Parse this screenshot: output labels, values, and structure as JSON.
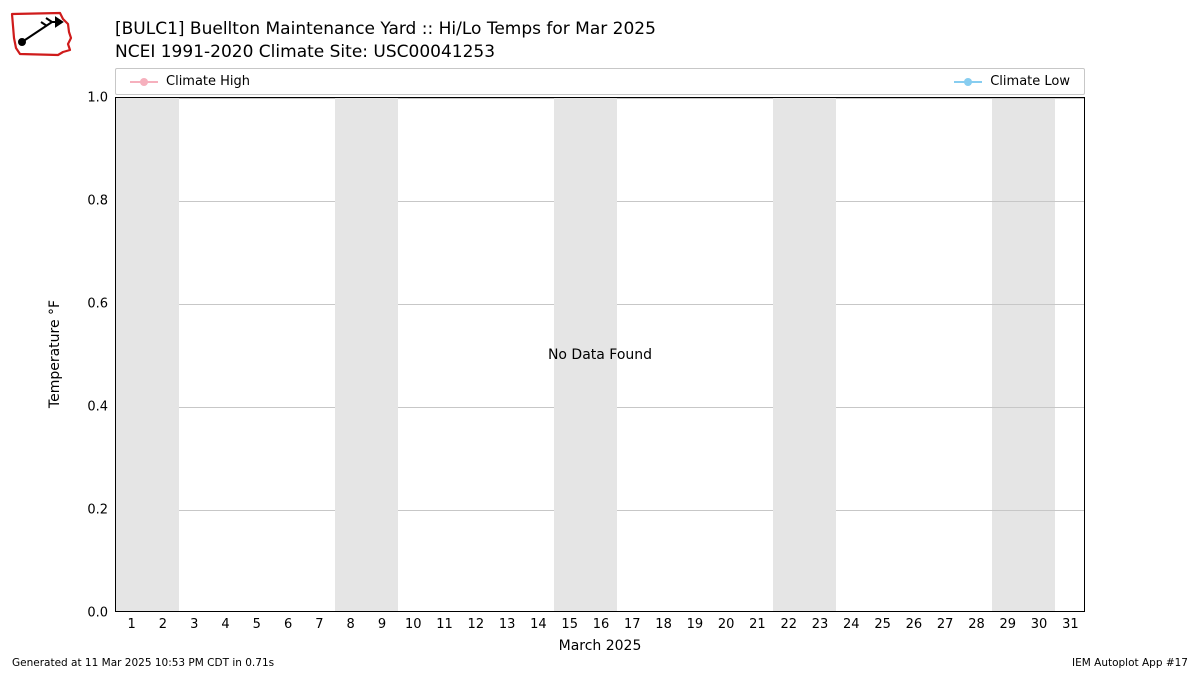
{
  "title": {
    "line1": "[BULC1] Buellton Maintenance Yard :: Hi/Lo Temps for Mar 2025",
    "line2": "NCEI 1991-2020 Climate Site: USC00041253",
    "fontsize": 17,
    "color": "#000000"
  },
  "legend": {
    "border_color": "#c7c7c7",
    "items": [
      {
        "label": "Climate High",
        "color": "#f6b0bd"
      },
      {
        "label": "Climate Low",
        "color": "#87cdf0"
      }
    ]
  },
  "chart": {
    "type": "line",
    "background_color": "#ffffff",
    "band_color": "#e5e5e5",
    "border_color": "#000000",
    "grid_color": "#c7c7c7",
    "x": {
      "label": "March 2025",
      "ticks": [
        1,
        2,
        3,
        4,
        5,
        6,
        7,
        8,
        9,
        10,
        11,
        12,
        13,
        14,
        15,
        16,
        17,
        18,
        19,
        20,
        21,
        22,
        23,
        24,
        25,
        26,
        27,
        28,
        29,
        30,
        31
      ],
      "lim": [
        0.5,
        31.5
      ],
      "weekend_bands": [
        [
          0.5,
          2.5
        ],
        [
          7.5,
          9.5
        ],
        [
          14.5,
          16.5
        ],
        [
          21.5,
          23.5
        ],
        [
          28.5,
          30.5
        ]
      ]
    },
    "y": {
      "label": "Temperature °F",
      "ticks": [
        0.0,
        0.2,
        0.4,
        0.6,
        0.8,
        1.0
      ],
      "tick_labels": [
        "0.0",
        "0.2",
        "0.4",
        "0.6",
        "0.8",
        "1.0"
      ],
      "lim": [
        0.0,
        1.0
      ]
    },
    "center_message": "No Data Found",
    "series": []
  },
  "footer": {
    "left": "Generated at 11 Mar 2025 10:53 PM CDT in 0.71s",
    "right": "IEM Autoplot App #17"
  },
  "logo": {
    "outline_color": "#cf1b1b",
    "ink_color": "#000000"
  }
}
